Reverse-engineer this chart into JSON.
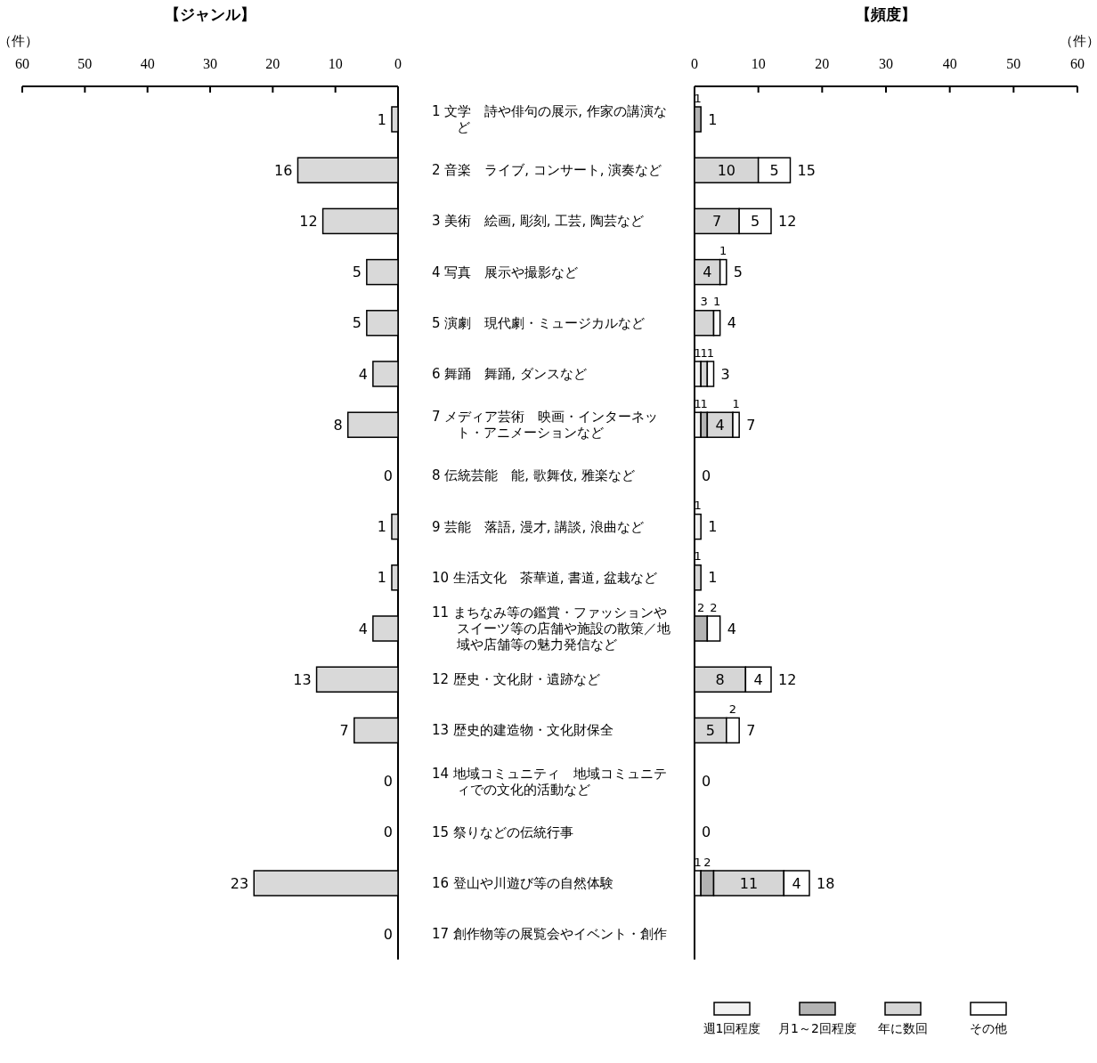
{
  "chart_data": [
    {
      "type": "bar",
      "orientation": "horizontal",
      "title": "【ジャンル】",
      "xlabel": "（件）",
      "xlim": [
        60,
        0
      ],
      "xticks": [
        60,
        50,
        40,
        30,
        20,
        10,
        0
      ],
      "data_labels": true,
      "color": "#d9d9d9",
      "categories": [
        "1 文学　詩や俳句の展示, 作家の講演など",
        "2 音楽　ライブ, コンサート, 演奏など",
        "3 美術　絵画, 彫刻, 工芸, 陶芸など",
        "4 写真　展示や撮影など",
        "5 演劇　現代劇・ミュージカルなど",
        "6 舞踊　舞踊, ダンスなど",
        "7 メディア芸術　映画・インターネット・アニメーションなど",
        "8 伝統芸能　能, 歌舞伎, 雅楽など",
        "9 芸能　落語, 漫才, 講談, 浪曲など",
        "10 生活文化　茶華道, 書道, 盆栽など",
        "11 まちなみ等の鑑賞・ファッションやスイーツ等の店舗や施設の散策／地域や店舗等の魅力発信など",
        "12 歴史・文化財・遺跡など",
        "13 歴史的建造物・文化財保全",
        "14 地域コミュニティ　地域コミュニティでの文化的活動など",
        "15 祭りなどの伝統行事",
        "16 登山や川遊び等の自然体験",
        "17 創作物等の展覧会やイベント・創作"
      ],
      "values": [
        1,
        16,
        12,
        5,
        5,
        4,
        8,
        0,
        1,
        1,
        4,
        13,
        7,
        0,
        0,
        23,
        0
      ]
    },
    {
      "type": "bar",
      "orientation": "horizontal",
      "stacked": true,
      "title": "【頻度】",
      "xlabel": "（件）",
      "xlim": [
        0,
        60
      ],
      "xticks": [
        0,
        10,
        20,
        30,
        40,
        50,
        60
      ],
      "data_labels": true,
      "legend": "bottom",
      "tick_labels": "x",
      "categories": [
        null,
        null,
        null,
        null,
        null,
        null,
        null,
        null,
        null,
        null,
        null,
        null,
        null,
        null,
        null,
        null,
        null
      ],
      "totals": [
        "1",
        "15",
        "12",
        "5",
        "4",
        "3",
        "7",
        "0",
        "1",
        "1",
        "4",
        "12",
        "7",
        "0",
        "0",
        "18",
        null
      ],
      "series": [
        {
          "name": "週1回程度",
          "color": "#f2f2f2",
          "values": [
            null,
            null,
            null,
            null,
            null,
            1,
            1,
            null,
            1,
            null,
            null,
            null,
            null,
            null,
            null,
            1,
            null
          ]
        },
        {
          "name": "月1～2回程度",
          "color": "#b3b3b3",
          "values": [
            1,
            null,
            null,
            null,
            null,
            null,
            1,
            null,
            null,
            null,
            2,
            null,
            null,
            null,
            null,
            2,
            null
          ]
        },
        {
          "name": "年に数回",
          "color": "#d6d6d6",
          "values": [
            null,
            10,
            7,
            4,
            3,
            1,
            4,
            null,
            null,
            1,
            null,
            8,
            5,
            null,
            null,
            11,
            null
          ]
        },
        {
          "name": "その他",
          "color": "#ffffff",
          "values": [
            null,
            5,
            5,
            1,
            1,
            1,
            1,
            null,
            null,
            null,
            2,
            4,
            2,
            null,
            null,
            4,
            null
          ]
        }
      ]
    }
  ]
}
